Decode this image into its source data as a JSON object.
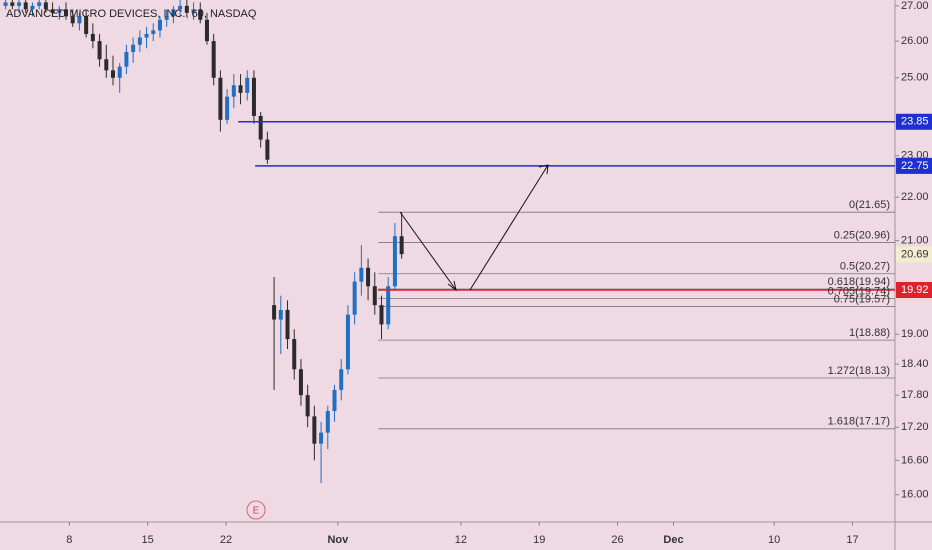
{
  "chart_data": {
    "type": "candlestick",
    "title": "ADVANCED MICRO DEVICES, INC., 60, NASDAQ",
    "log_scale": true,
    "background": "#efd9e3",
    "up_color": "#1f6fc2",
    "down_color": "#2b2b2b",
    "xlim": [
      1.8,
      81.8
    ],
    "xticks": [
      {
        "value": 8,
        "label": "8"
      },
      {
        "value": 15,
        "label": "15"
      },
      {
        "value": 22,
        "label": "22"
      },
      {
        "value": 32,
        "label": "Nov"
      },
      {
        "value": 43,
        "label": "12"
      },
      {
        "value": 50,
        "label": "19"
      },
      {
        "value": 57,
        "label": "26"
      },
      {
        "value": 62,
        "label": "Dec"
      },
      {
        "value": 71,
        "label": "10"
      },
      {
        "value": 78,
        "label": "17"
      }
    ],
    "ylim": [
      15.54,
      27.17
    ],
    "yticks": [
      {
        "value": 27,
        "label": "27.00"
      },
      {
        "value": 26,
        "label": "26.00"
      },
      {
        "value": 25,
        "label": "25.00"
      },
      {
        "value": 23,
        "label": "23.00"
      },
      {
        "value": 22,
        "label": "22.00"
      },
      {
        "value": 21,
        "label": "21.00"
      },
      {
        "value": 19,
        "label": "19.00"
      },
      {
        "value": 18.4,
        "label": "18.40"
      },
      {
        "value": 17.8,
        "label": "17.80"
      },
      {
        "value": 17.2,
        "label": "17.20"
      },
      {
        "value": 16.6,
        "label": "16.60"
      },
      {
        "value": 16,
        "label": "16.00"
      }
    ],
    "x": [
      2.3,
      2.9,
      3.5,
      4.1,
      4.7,
      5.3,
      5.9,
      6.5,
      7.1,
      7.7,
      8.3,
      8.9,
      9.5,
      10.1,
      10.7,
      11.3,
      11.9,
      12.5,
      13.1,
      13.7,
      14.3,
      14.9,
      15.5,
      16.1,
      16.7,
      17.3,
      17.9,
      18.5,
      19.1,
      19.7,
      20.3,
      20.9,
      21.5,
      22.1,
      22.7,
      23.3,
      23.9,
      24.5,
      25.1,
      25.7,
      26.3,
      26.9,
      27.5,
      28.1,
      28.7,
      29.3,
      29.9,
      30.5,
      31.1,
      31.7,
      32.3,
      32.9,
      33.5,
      34.1,
      34.7,
      35.3,
      35.9,
      36.5,
      37.1,
      37.7
    ],
    "open": [
      27.0,
      27.1,
      27.0,
      27.1,
      26.9,
      27.0,
      27.1,
      26.9,
      26.8,
      26.9,
      26.7,
      26.5,
      26.7,
      26.2,
      26.0,
      25.5,
      25.2,
      25.0,
      25.3,
      25.7,
      25.9,
      26.1,
      26.2,
      26.3,
      26.6,
      26.7,
      26.9,
      27.0,
      26.8,
      26.9,
      26.6,
      26.0,
      25.0,
      23.9,
      24.5,
      24.8,
      24.6,
      25.0,
      24.0,
      23.4,
      19.6,
      19.3,
      19.5,
      18.9,
      18.3,
      17.8,
      17.4,
      16.9,
      17.1,
      17.5,
      17.9,
      18.3,
      19.4,
      20.1,
      20.4,
      20.0,
      19.6,
      19.2,
      20.0,
      21.1
    ],
    "high": [
      27.2,
      27.2,
      27.2,
      27.2,
      27.1,
      27.2,
      27.2,
      27.1,
      27.0,
      27.1,
      26.9,
      26.8,
      26.9,
      26.5,
      26.2,
      25.9,
      25.6,
      25.4,
      25.9,
      26.1,
      26.3,
      26.4,
      26.5,
      26.7,
      26.9,
      27.0,
      27.2,
      27.2,
      27.1,
      27.1,
      26.8,
      26.2,
      25.2,
      24.7,
      25.1,
      25.1,
      25.2,
      25.2,
      24.1,
      23.6,
      20.2,
      19.8,
      19.7,
      19.1,
      18.5,
      18.0,
      17.6,
      17.3,
      17.6,
      18.0,
      18.5,
      19.6,
      20.3,
      20.9,
      20.6,
      20.3,
      19.8,
      20.2,
      21.4,
      21.65
    ],
    "low": [
      26.9,
      26.9,
      26.8,
      26.8,
      26.7,
      26.9,
      26.8,
      26.7,
      26.6,
      26.6,
      26.4,
      26.3,
      26.1,
      25.8,
      25.3,
      25.0,
      24.8,
      24.6,
      25.1,
      25.4,
      25.7,
      25.8,
      26.0,
      26.1,
      26.4,
      26.5,
      26.7,
      26.7,
      26.6,
      26.5,
      25.9,
      24.8,
      23.6,
      23.8,
      24.2,
      24.3,
      24.4,
      23.8,
      23.2,
      22.8,
      17.9,
      18.6,
      18.7,
      18.1,
      17.6,
      17.2,
      16.6,
      16.2,
      16.8,
      17.3,
      17.7,
      18.2,
      19.2,
      19.8,
      19.7,
      19.4,
      18.9,
      19.1,
      19.9,
      20.6
    ],
    "close": [
      27.1,
      27.0,
      27.1,
      26.9,
      27.0,
      27.1,
      26.9,
      26.8,
      26.9,
      26.7,
      26.5,
      26.7,
      26.2,
      26.0,
      25.5,
      25.2,
      25.0,
      25.3,
      25.7,
      25.9,
      26.1,
      26.2,
      26.3,
      26.6,
      26.7,
      26.9,
      27.0,
      26.8,
      26.9,
      26.6,
      26.0,
      25.0,
      23.9,
      24.5,
      24.8,
      24.6,
      25.0,
      24.0,
      23.4,
      22.9,
      19.3,
      19.5,
      18.9,
      18.3,
      17.8,
      17.4,
      16.9,
      17.1,
      17.5,
      17.9,
      18.3,
      19.4,
      20.1,
      20.4,
      20.0,
      19.6,
      19.2,
      20.0,
      21.1,
      20.7
    ],
    "lines": [
      {
        "value": 23.85,
        "start": 23.1,
        "color": "#1f2fd0"
      },
      {
        "value": 22.75,
        "start": 24.6,
        "color": "#1f2fd0"
      },
      {
        "value": 19.92,
        "start": 35.6,
        "color": "#e0202a"
      }
    ],
    "last_price": 20.69,
    "fib_start": 35.6,
    "fib_levels": [
      {
        "value": 21.65,
        "label": "0(21.65)"
      },
      {
        "value": 20.96,
        "label": "0.25(20.96)"
      },
      {
        "value": 20.27,
        "label": "0.5(20.27)"
      },
      {
        "value": 19.94,
        "label": "0.618(19.94)"
      },
      {
        "value": 19.74,
        "label": "0.705(19.74)"
      },
      {
        "value": 19.57,
        "label": "0.75(19.57)"
      },
      {
        "value": 18.88,
        "label": "1(18.88)"
      },
      {
        "value": 18.13,
        "label": "1.272(18.13)"
      },
      {
        "value": 17.17,
        "label": "1.618(17.17)"
      }
    ],
    "annotation": "E"
  }
}
